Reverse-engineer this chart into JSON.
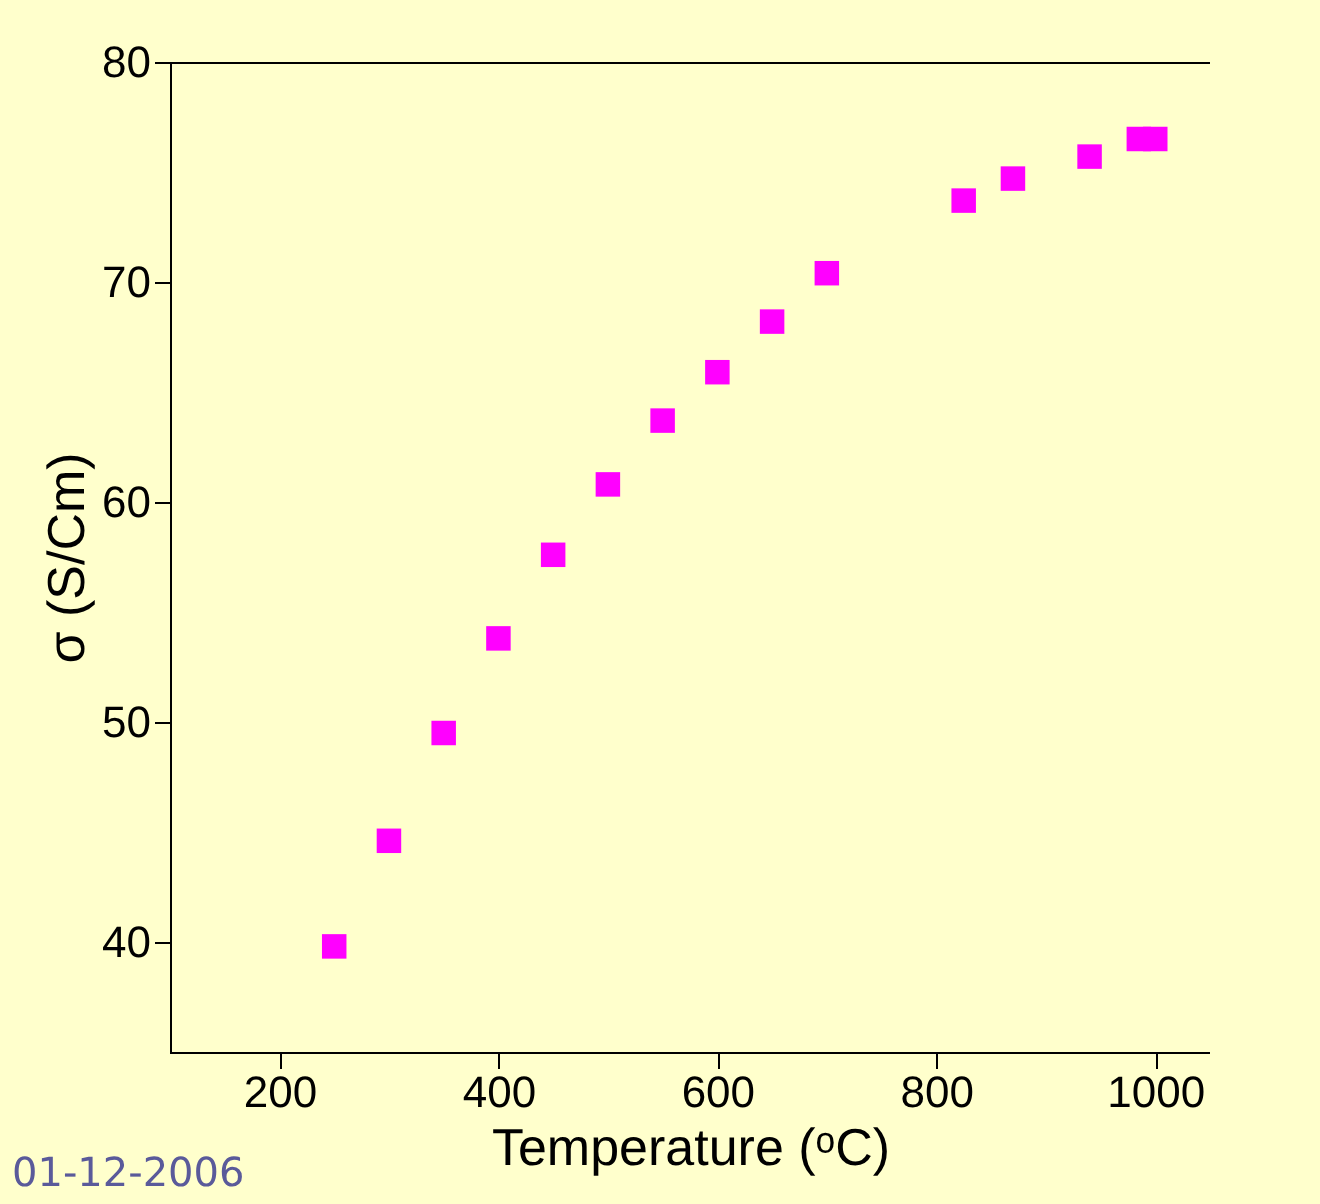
{
  "chart_data": {
    "type": "scatter",
    "xlabel": "Temperature (ᵒC)",
    "ylabel": "σ (S/Cm)",
    "x": [
      250,
      300,
      350,
      400,
      450,
      500,
      550,
      600,
      650,
      700,
      825,
      870,
      940,
      985,
      1000
    ],
    "series": [
      {
        "color": "#ff00ff",
        "values": [
          39.8,
          44.6,
          49.5,
          53.8,
          57.6,
          60.8,
          63.7,
          65.9,
          68.2,
          70.4,
          73.7,
          74.7,
          75.7,
          76.5,
          76.5
        ]
      }
    ],
    "xlim": [
      100,
      1050
    ],
    "xticks": [
      200,
      400,
      600,
      800,
      1000
    ],
    "ylim": [
      35,
      80
    ],
    "yticks": [
      40,
      50,
      60,
      70,
      80
    ],
    "marker": "square",
    "grid": false,
    "legend": false,
    "annotations": [
      "01-12-2006"
    ]
  }
}
